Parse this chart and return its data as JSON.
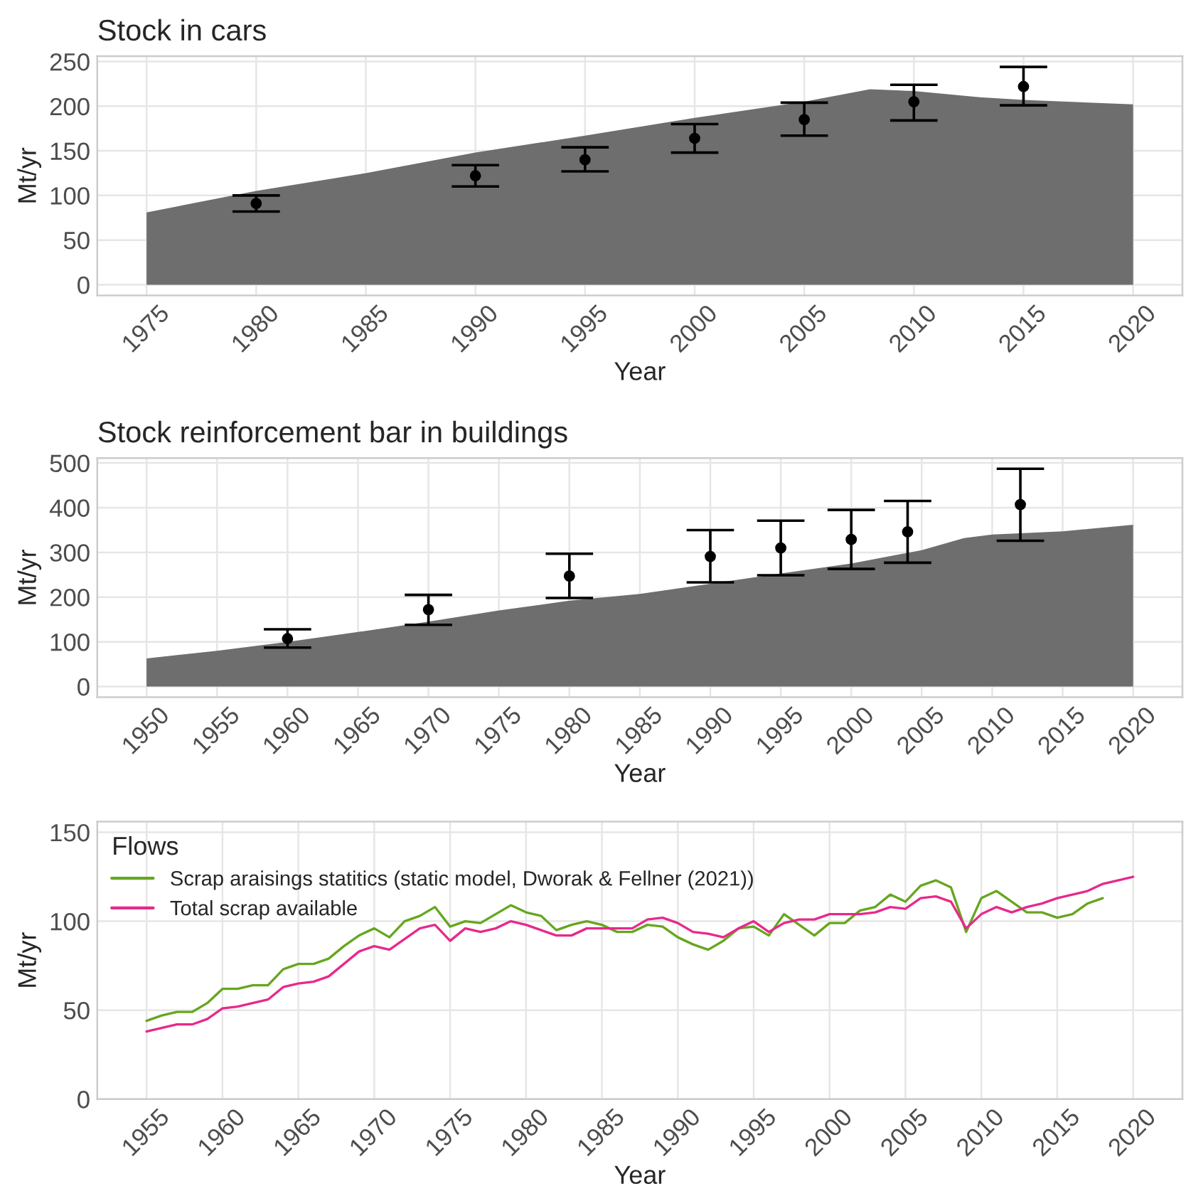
{
  "chart_data": [
    {
      "type": "area",
      "title": "Stock in cars",
      "xlabel": "Year",
      "ylabel": "Mt/yr",
      "series": [
        {
          "type": "area",
          "color": "#6e6e6e",
          "x": [
            1975,
            1980,
            1985,
            1990,
            1995,
            2000,
            2005,
            2008,
            2010,
            2013,
            2015,
            2020
          ],
          "values": [
            81,
            105,
            125,
            148,
            167,
            187,
            205,
            219,
            217,
            210,
            207,
            202
          ]
        },
        {
          "type": "scatter",
          "color": "#000000",
          "x": [
            1980,
            1990,
            1995,
            2000,
            2005,
            2010,
            2015
          ],
          "values": [
            91,
            122,
            140,
            164,
            185,
            205,
            222
          ],
          "errors": [
            [
              82,
              100
            ],
            [
              110,
              134
            ],
            [
              127,
              154
            ],
            [
              148,
              180
            ],
            [
              167,
              204
            ],
            [
              184,
              224
            ],
            [
              201,
              244
            ]
          ]
        }
      ],
      "xlim": [
        1972.75,
        2022.25
      ],
      "ylim": [
        -12,
        256
      ],
      "xticks": [
        1975,
        1980,
        1985,
        1990,
        1995,
        2000,
        2005,
        2010,
        2015,
        2020
      ],
      "yticks": [
        0,
        50,
        100,
        150,
        200,
        250
      ],
      "grid": true
    },
    {
      "type": "area",
      "title": "Stock reinforcement bar in buildings",
      "xlabel": "Year",
      "ylabel": "Mt/yr",
      "series": [
        {
          "type": "area",
          "color": "#6e6e6e",
          "x": [
            1950,
            1955,
            1960,
            1965,
            1970,
            1975,
            1980,
            1985,
            1990,
            1995,
            2000,
            2005,
            2008,
            2010,
            2015,
            2020
          ],
          "values": [
            63,
            80,
            100,
            122,
            145,
            170,
            192,
            207,
            230,
            253,
            275,
            305,
            332,
            340,
            347,
            362
          ]
        },
        {
          "type": "scatter",
          "color": "#000000",
          "x": [
            1960,
            1970,
            1980,
            1990,
            1995,
            2000,
            2004,
            2012
          ],
          "values": [
            107,
            172,
            247,
            291,
            310,
            329,
            346,
            407
          ],
          "errors": [
            [
              87,
              128
            ],
            [
              138,
              205
            ],
            [
              198,
              297
            ],
            [
              233,
              350
            ],
            [
              249,
              371
            ],
            [
              263,
              395
            ],
            [
              277,
              415
            ],
            [
              326,
              487
            ]
          ]
        }
      ],
      "xlim": [
        1946.5,
        2023.5
      ],
      "ylim": [
        -24,
        511
      ],
      "xticks": [
        1950,
        1955,
        1960,
        1965,
        1970,
        1975,
        1980,
        1985,
        1990,
        1995,
        2000,
        2005,
        2010,
        2015,
        2020
      ],
      "yticks": [
        0,
        100,
        200,
        300,
        400,
        500
      ],
      "grid": true
    },
    {
      "type": "line",
      "xlabel": "Year",
      "ylabel": "Mt/yr",
      "legend_title": "Flows",
      "legend": "top left",
      "x": [
        1955,
        1956,
        1957,
        1958,
        1959,
        1960,
        1961,
        1962,
        1963,
        1964,
        1965,
        1966,
        1967,
        1968,
        1969,
        1970,
        1971,
        1972,
        1973,
        1974,
        1975,
        1976,
        1977,
        1978,
        1979,
        1980,
        1981,
        1982,
        1983,
        1984,
        1985,
        1986,
        1987,
        1988,
        1989,
        1990,
        1991,
        1992,
        1993,
        1994,
        1995,
        1996,
        1997,
        1998,
        1999,
        2000,
        2001,
        2002,
        2003,
        2004,
        2005,
        2006,
        2007,
        2008,
        2009,
        2010,
        2011,
        2012,
        2013,
        2014,
        2015,
        2016,
        2017,
        2018,
        2019,
        2020
      ],
      "series": [
        {
          "name": "Scrap araisings statitics (static model, Dworak & Fellner (2021))",
          "color": "#66a61e",
          "values": [
            44,
            47,
            49,
            49,
            54,
            62,
            62,
            64,
            64,
            73,
            76,
            76,
            79,
            86,
            92,
            96,
            91,
            100,
            103,
            108,
            97,
            100,
            99,
            104,
            109,
            105,
            103,
            95,
            98,
            100,
            98,
            94,
            94,
            98,
            97,
            91,
            87,
            84,
            89,
            96,
            97,
            92,
            104,
            98,
            92,
            99,
            99,
            106,
            108,
            115,
            111,
            120,
            123,
            119,
            94,
            113,
            117,
            111,
            105,
            105,
            102,
            104,
            110,
            113,
            null,
            null
          ]
        },
        {
          "name": "Total scrap available",
          "color": "#e7298a",
          "values": [
            38,
            40,
            42,
            42,
            45,
            51,
            52,
            54,
            56,
            63,
            65,
            66,
            69,
            76,
            83,
            86,
            84,
            90,
            96,
            98,
            89,
            96,
            94,
            96,
            100,
            98,
            95,
            92,
            92,
            96,
            96,
            96,
            96,
            101,
            102,
            99,
            94,
            93,
            91,
            96,
            100,
            94,
            99,
            101,
            101,
            104,
            104,
            104,
            105,
            108,
            107,
            113,
            114,
            111,
            96,
            104,
            108,
            105,
            108,
            110,
            113,
            115,
            117,
            121,
            123,
            125
          ]
        }
      ],
      "xlim": [
        1951.75,
        2023.25
      ],
      "ylim": [
        0,
        156
      ],
      "xticks": [
        1955,
        1960,
        1965,
        1970,
        1975,
        1980,
        1985,
        1990,
        1995,
        2000,
        2005,
        2010,
        2015,
        2020
      ],
      "yticks": [
        0,
        50,
        100,
        150
      ],
      "grid": true
    }
  ]
}
